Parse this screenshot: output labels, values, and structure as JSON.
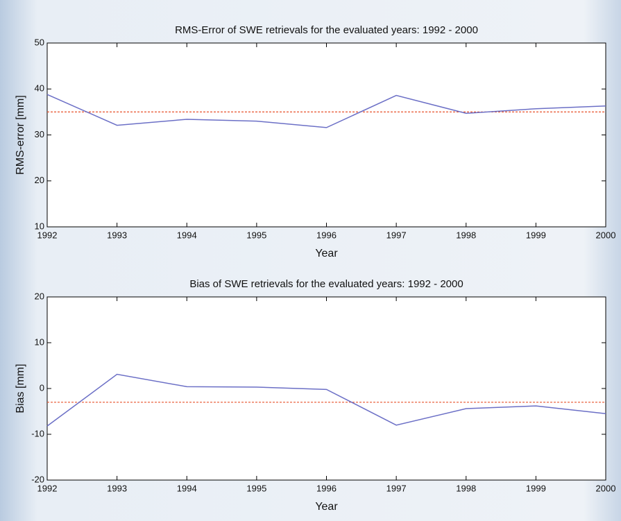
{
  "chart_data": [
    {
      "type": "line",
      "title": "RMS-Error of SWE retrievals for the evaluated years: 1992 - 2000",
      "x_label": "Year",
      "y_label": "RMS-error [mm]",
      "x": [
        1992,
        1993,
        1994,
        1995,
        1996,
        1997,
        1998,
        1999,
        2000
      ],
      "series": [
        {
          "color": "#6b6fc6",
          "values": [
            38.8,
            32.1,
            33.4,
            33.0,
            31.6,
            38.6,
            34.7,
            35.7,
            36.3
          ]
        }
      ],
      "reference_line": {
        "value": 35,
        "color": "#e8502a"
      },
      "xlim": [
        1992,
        2000
      ],
      "xticks": [
        1992,
        1993,
        1994,
        1995,
        1996,
        1997,
        1998,
        1999,
        2000
      ],
      "ylim": [
        10,
        50
      ],
      "yticks": [
        10,
        20,
        30,
        40,
        50
      ]
    },
    {
      "type": "line",
      "title": "Bias of SWE retrievals for the evaluated years: 1992 - 2000",
      "x_label": "Year",
      "y_label": "Bias [mm]",
      "x": [
        1992,
        1993,
        1994,
        1995,
        1996,
        1997,
        1998,
        1999,
        2000
      ],
      "series": [
        {
          "color": "#6b6fc6",
          "values": [
            -8.2,
            3.1,
            0.4,
            0.3,
            -0.2,
            -8.0,
            -4.4,
            -3.8,
            -5.5
          ]
        }
      ],
      "reference_line": {
        "value": -3,
        "color": "#e8502a"
      },
      "xlim": [
        1992,
        2000
      ],
      "xticks": [
        1992,
        1993,
        1994,
        1995,
        1996,
        1997,
        1998,
        1999,
        2000
      ],
      "ylim": [
        -20,
        20
      ],
      "yticks": [
        -20,
        -10,
        0,
        10,
        20
      ]
    }
  ]
}
